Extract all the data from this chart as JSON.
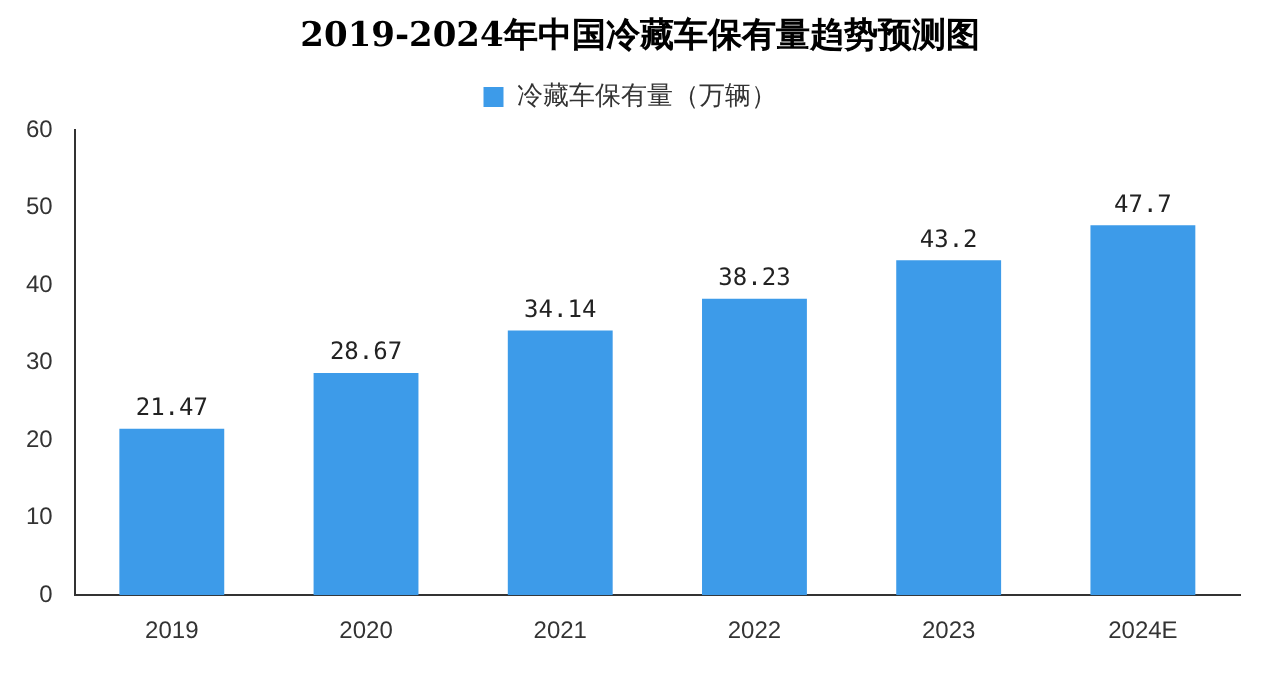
{
  "chart_data": {
    "type": "bar",
    "title": "2019-2024年中国冷藏车保有量趋势预测图",
    "categories": [
      "2019",
      "2020",
      "2021",
      "2022",
      "2023",
      "2024E"
    ],
    "series": [
      {
        "name": "冷藏车保有量（万辆）",
        "color": "#3d9be9",
        "values": [
          21.47,
          28.67,
          34.14,
          38.23,
          43.2,
          47.7
        ]
      }
    ],
    "ylim": [
      0,
      60
    ],
    "yticks": [
      0,
      10,
      20,
      30,
      40,
      50,
      60
    ],
    "grid": false,
    "legend": "top",
    "data_labels": true
  }
}
